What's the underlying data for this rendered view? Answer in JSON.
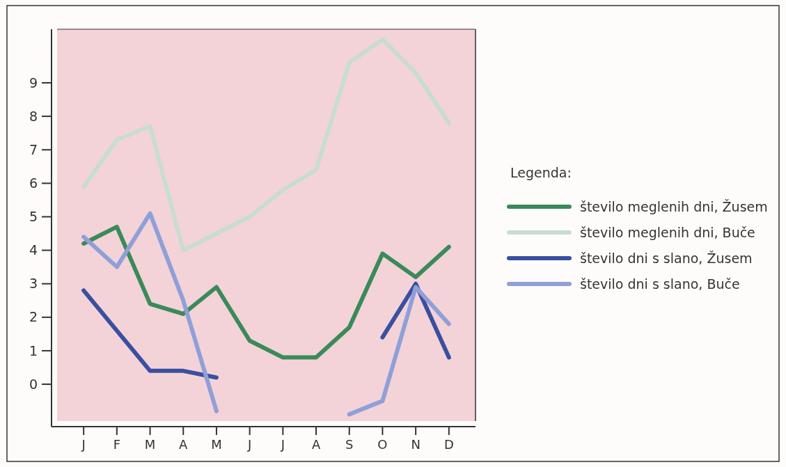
{
  "chart_data": {
    "type": "line",
    "categories": [
      "J",
      "F",
      "M",
      "A",
      "M",
      "J",
      "J",
      "A",
      "S",
      "O",
      "N",
      "D"
    ],
    "series": [
      {
        "name": "število meglenih dni, Žusem",
        "color": "#3a8a5a",
        "values": [
          4.2,
          4.7,
          2.4,
          2.1,
          2.9,
          1.3,
          0.8,
          0.8,
          1.7,
          3.9,
          3.2,
          4.1
        ]
      },
      {
        "name": "število meglenih dni, Buče",
        "color": "#c8ddd0",
        "values": [
          5.9,
          7.3,
          7.7,
          4.0,
          4.5,
          5.0,
          5.8,
          6.4,
          9.6,
          10.3,
          9.3,
          7.8
        ]
      },
      {
        "name": "število dni s slano, Žusem",
        "color": "#3a4fa0",
        "values": [
          2.8,
          1.6,
          0.4,
          0.4,
          0.2,
          null,
          null,
          null,
          null,
          1.4,
          3.0,
          0.8
        ]
      },
      {
        "name": "število dni s slano, Buče",
        "color": "#8f9fd8",
        "values": [
          4.4,
          3.5,
          5.1,
          2.5,
          -0.8,
          null,
          null,
          null,
          -0.9,
          -0.5,
          2.9,
          1.8
        ]
      }
    ],
    "ylim": [
      -1.1,
      10.6
    ],
    "yticks": [
      0,
      1,
      2,
      3,
      4,
      5,
      6,
      7,
      8,
      9
    ],
    "grid": false,
    "legend": "right",
    "legend_title": "Legenda:",
    "marker": "none",
    "line_style": "solid"
  }
}
